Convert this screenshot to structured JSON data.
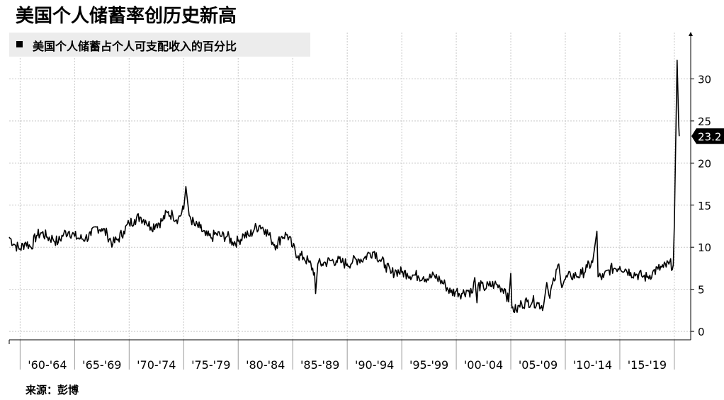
{
  "title": "美国个人储蓄率创历史新高",
  "source": "来源：彭博",
  "chart_data": {
    "type": "line",
    "legend": "top-left",
    "grid": true,
    "series": [
      {
        "name": "美国个人储蓄占个人可支配收入的百分比",
        "color": "#000000",
        "points": [
          [
            1959.0,
            11.2
          ],
          [
            1959.5,
            10.3
          ],
          [
            1960.0,
            9.8
          ],
          [
            1960.5,
            10.6
          ],
          [
            1961.0,
            10.0
          ],
          [
            1961.5,
            11.4
          ],
          [
            1962.0,
            11.7
          ],
          [
            1962.5,
            11.2
          ],
          [
            1963.0,
            11.0
          ],
          [
            1963.5,
            10.6
          ],
          [
            1964.0,
            11.6
          ],
          [
            1964.5,
            11.9
          ],
          [
            1965.0,
            11.3
          ],
          [
            1965.5,
            11.0
          ],
          [
            1966.0,
            11.1
          ],
          [
            1966.5,
            11.4
          ],
          [
            1967.0,
            12.4
          ],
          [
            1967.5,
            12.2
          ],
          [
            1968.0,
            11.5
          ],
          [
            1968.5,
            10.4
          ],
          [
            1969.0,
            11.0
          ],
          [
            1969.5,
            11.9
          ],
          [
            1970.0,
            12.8
          ],
          [
            1970.5,
            13.3
          ],
          [
            1971.0,
            13.6
          ],
          [
            1971.5,
            13.2
          ],
          [
            1972.0,
            12.4
          ],
          [
            1972.5,
            12.8
          ],
          [
            1973.0,
            13.1
          ],
          [
            1973.5,
            14.1
          ],
          [
            1974.0,
            13.8
          ],
          [
            1974.5,
            13.4
          ],
          [
            1975.0,
            14.5
          ],
          [
            1975.2,
            17.2
          ],
          [
            1975.5,
            13.8
          ],
          [
            1976.0,
            12.6
          ],
          [
            1976.5,
            12.3
          ],
          [
            1977.0,
            11.4
          ],
          [
            1977.5,
            11.1
          ],
          [
            1978.0,
            11.6
          ],
          [
            1978.5,
            11.3
          ],
          [
            1979.0,
            11.3
          ],
          [
            1979.5,
            10.6
          ],
          [
            1980.0,
            10.7
          ],
          [
            1980.5,
            11.5
          ],
          [
            1981.0,
            11.3
          ],
          [
            1981.5,
            12.2
          ],
          [
            1982.0,
            12.6
          ],
          [
            1982.5,
            12.1
          ],
          [
            1983.0,
            11.0
          ],
          [
            1983.5,
            10.2
          ],
          [
            1984.0,
            11.3
          ],
          [
            1984.5,
            11.5
          ],
          [
            1985.0,
            10.0
          ],
          [
            1985.5,
            9.0
          ],
          [
            1986.0,
            8.8
          ],
          [
            1986.5,
            8.2
          ],
          [
            1987.0,
            7.0
          ],
          [
            1987.1,
            4.5
          ],
          [
            1987.3,
            8.0
          ],
          [
            1987.7,
            8.0
          ],
          [
            1988.0,
            8.2
          ],
          [
            1988.5,
            8.4
          ],
          [
            1989.0,
            8.4
          ],
          [
            1989.5,
            8.2
          ],
          [
            1990.0,
            8.0
          ],
          [
            1990.5,
            8.3
          ],
          [
            1991.0,
            8.6
          ],
          [
            1991.5,
            8.6
          ],
          [
            1992.0,
            9.3
          ],
          [
            1992.5,
            9.5
          ],
          [
            1993.0,
            8.5
          ],
          [
            1993.5,
            7.9
          ],
          [
            1994.0,
            6.9
          ],
          [
            1994.5,
            7.2
          ],
          [
            1995.0,
            7.0
          ],
          [
            1995.5,
            6.9
          ],
          [
            1996.0,
            6.7
          ],
          [
            1996.5,
            6.6
          ],
          [
            1997.0,
            6.5
          ],
          [
            1997.5,
            6.3
          ],
          [
            1998.0,
            6.6
          ],
          [
            1998.5,
            6.1
          ],
          [
            1999.0,
            5.5
          ],
          [
            1999.5,
            4.6
          ],
          [
            2000.0,
            4.8
          ],
          [
            2000.5,
            4.5
          ],
          [
            2001.0,
            4.9
          ],
          [
            2001.5,
            4.6
          ],
          [
            2001.7,
            6.4
          ],
          [
            2001.9,
            3.4
          ],
          [
            2002.0,
            5.5
          ],
          [
            2002.5,
            5.2
          ],
          [
            2003.0,
            5.4
          ],
          [
            2003.5,
            5.6
          ],
          [
            2004.0,
            5.3
          ],
          [
            2004.5,
            5.0
          ],
          [
            2004.8,
            3.5
          ],
          [
            2005.0,
            6.9
          ],
          [
            2005.1,
            2.8
          ],
          [
            2005.5,
            2.5
          ],
          [
            2006.0,
            3.3
          ],
          [
            2006.5,
            3.5
          ],
          [
            2007.0,
            3.6
          ],
          [
            2007.5,
            3.3
          ],
          [
            2008.0,
            3.0
          ],
          [
            2008.3,
            5.8
          ],
          [
            2008.5,
            4.3
          ],
          [
            2009.0,
            6.0
          ],
          [
            2009.4,
            8.0
          ],
          [
            2009.6,
            5.8
          ],
          [
            2010.0,
            6.2
          ],
          [
            2010.5,
            6.6
          ],
          [
            2011.0,
            6.6
          ],
          [
            2011.5,
            6.8
          ],
          [
            2012.0,
            7.6
          ],
          [
            2012.5,
            8.2
          ],
          [
            2012.9,
            11.9
          ],
          [
            2013.0,
            6.5
          ],
          [
            2013.5,
            6.4
          ],
          [
            2014.0,
            7.3
          ],
          [
            2014.5,
            7.5
          ],
          [
            2015.0,
            7.7
          ],
          [
            2015.5,
            7.4
          ],
          [
            2016.0,
            7.0
          ],
          [
            2016.5,
            6.8
          ],
          [
            2017.0,
            6.6
          ],
          [
            2017.5,
            6.4
          ],
          [
            2018.0,
            7.0
          ],
          [
            2018.5,
            7.4
          ],
          [
            2019.0,
            7.6
          ],
          [
            2019.5,
            8.0
          ],
          [
            2019.9,
            7.9
          ],
          [
            2020.0,
            12.7
          ],
          [
            2020.25,
            32.2
          ],
          [
            2020.4,
            24.5
          ],
          [
            2020.45,
            23.2
          ]
        ]
      }
    ],
    "x_tick_labels": [
      "'60-'64",
      "'65-'69",
      "'70-'74",
      "'75-'79",
      "'80-'84",
      "'85-'89",
      "'90-'94",
      "'95-'99",
      "'00-'04",
      "'05-'09",
      "'10-'14",
      "'15-'19"
    ],
    "x_ranges": [
      [
        1960,
        1965
      ],
      [
        1965,
        1970
      ],
      [
        1970,
        1975
      ],
      [
        1975,
        1980
      ],
      [
        1980,
        1985
      ],
      [
        1985,
        1990
      ],
      [
        1990,
        1995
      ],
      [
        1995,
        2000
      ],
      [
        2000,
        2005
      ],
      [
        2005,
        2010
      ],
      [
        2010,
        2015
      ],
      [
        2015,
        2020
      ]
    ],
    "xlim": [
      1959.0,
      2021.5
    ],
    "yticks": [
      0,
      5,
      10,
      15,
      20,
      25,
      30
    ],
    "ylim": [
      -1.0,
      35.5
    ],
    "last_value_label": "23.2",
    "last_value": 23.2
  }
}
